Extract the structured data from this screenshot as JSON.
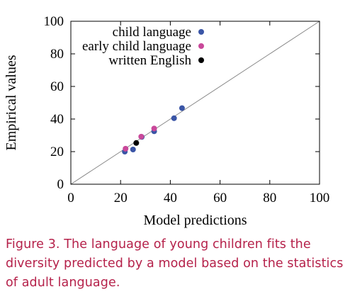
{
  "chart_data": {
    "type": "scatter",
    "title": "",
    "xlabel": "Model predictions",
    "ylabel": "Empirical values",
    "xlim": [
      0,
      100
    ],
    "ylim": [
      0,
      100
    ],
    "xticks": [
      0,
      20,
      40,
      60,
      80,
      100
    ],
    "yticks": [
      0,
      20,
      40,
      60,
      80,
      100
    ],
    "grid": false,
    "legend_position": "top-left",
    "reference_line": {
      "from": [
        0,
        0
      ],
      "to": [
        100,
        100
      ],
      "color": "#888888"
    },
    "series": [
      {
        "name": "child language",
        "color": "#3a55a6",
        "points": [
          {
            "x": 21.7,
            "y": 20
          },
          {
            "x": 25,
            "y": 21.3
          },
          {
            "x": 28.5,
            "y": 29
          },
          {
            "x": 33.5,
            "y": 32.5
          },
          {
            "x": 41.5,
            "y": 40.5
          },
          {
            "x": 44.7,
            "y": 46.7
          }
        ]
      },
      {
        "name": "early child language",
        "color": "#c9489a",
        "points": [
          {
            "x": 22,
            "y": 21.8
          },
          {
            "x": 28.3,
            "y": 29.2
          },
          {
            "x": 33.5,
            "y": 34.2
          }
        ]
      },
      {
        "name": "written English",
        "color": "#000000",
        "points": [
          {
            "x": 26.3,
            "y": 25.3
          }
        ]
      }
    ]
  },
  "caption": "Figure 3. The language of young children fits the diversity predicted by a model based on the statistics of adult language."
}
